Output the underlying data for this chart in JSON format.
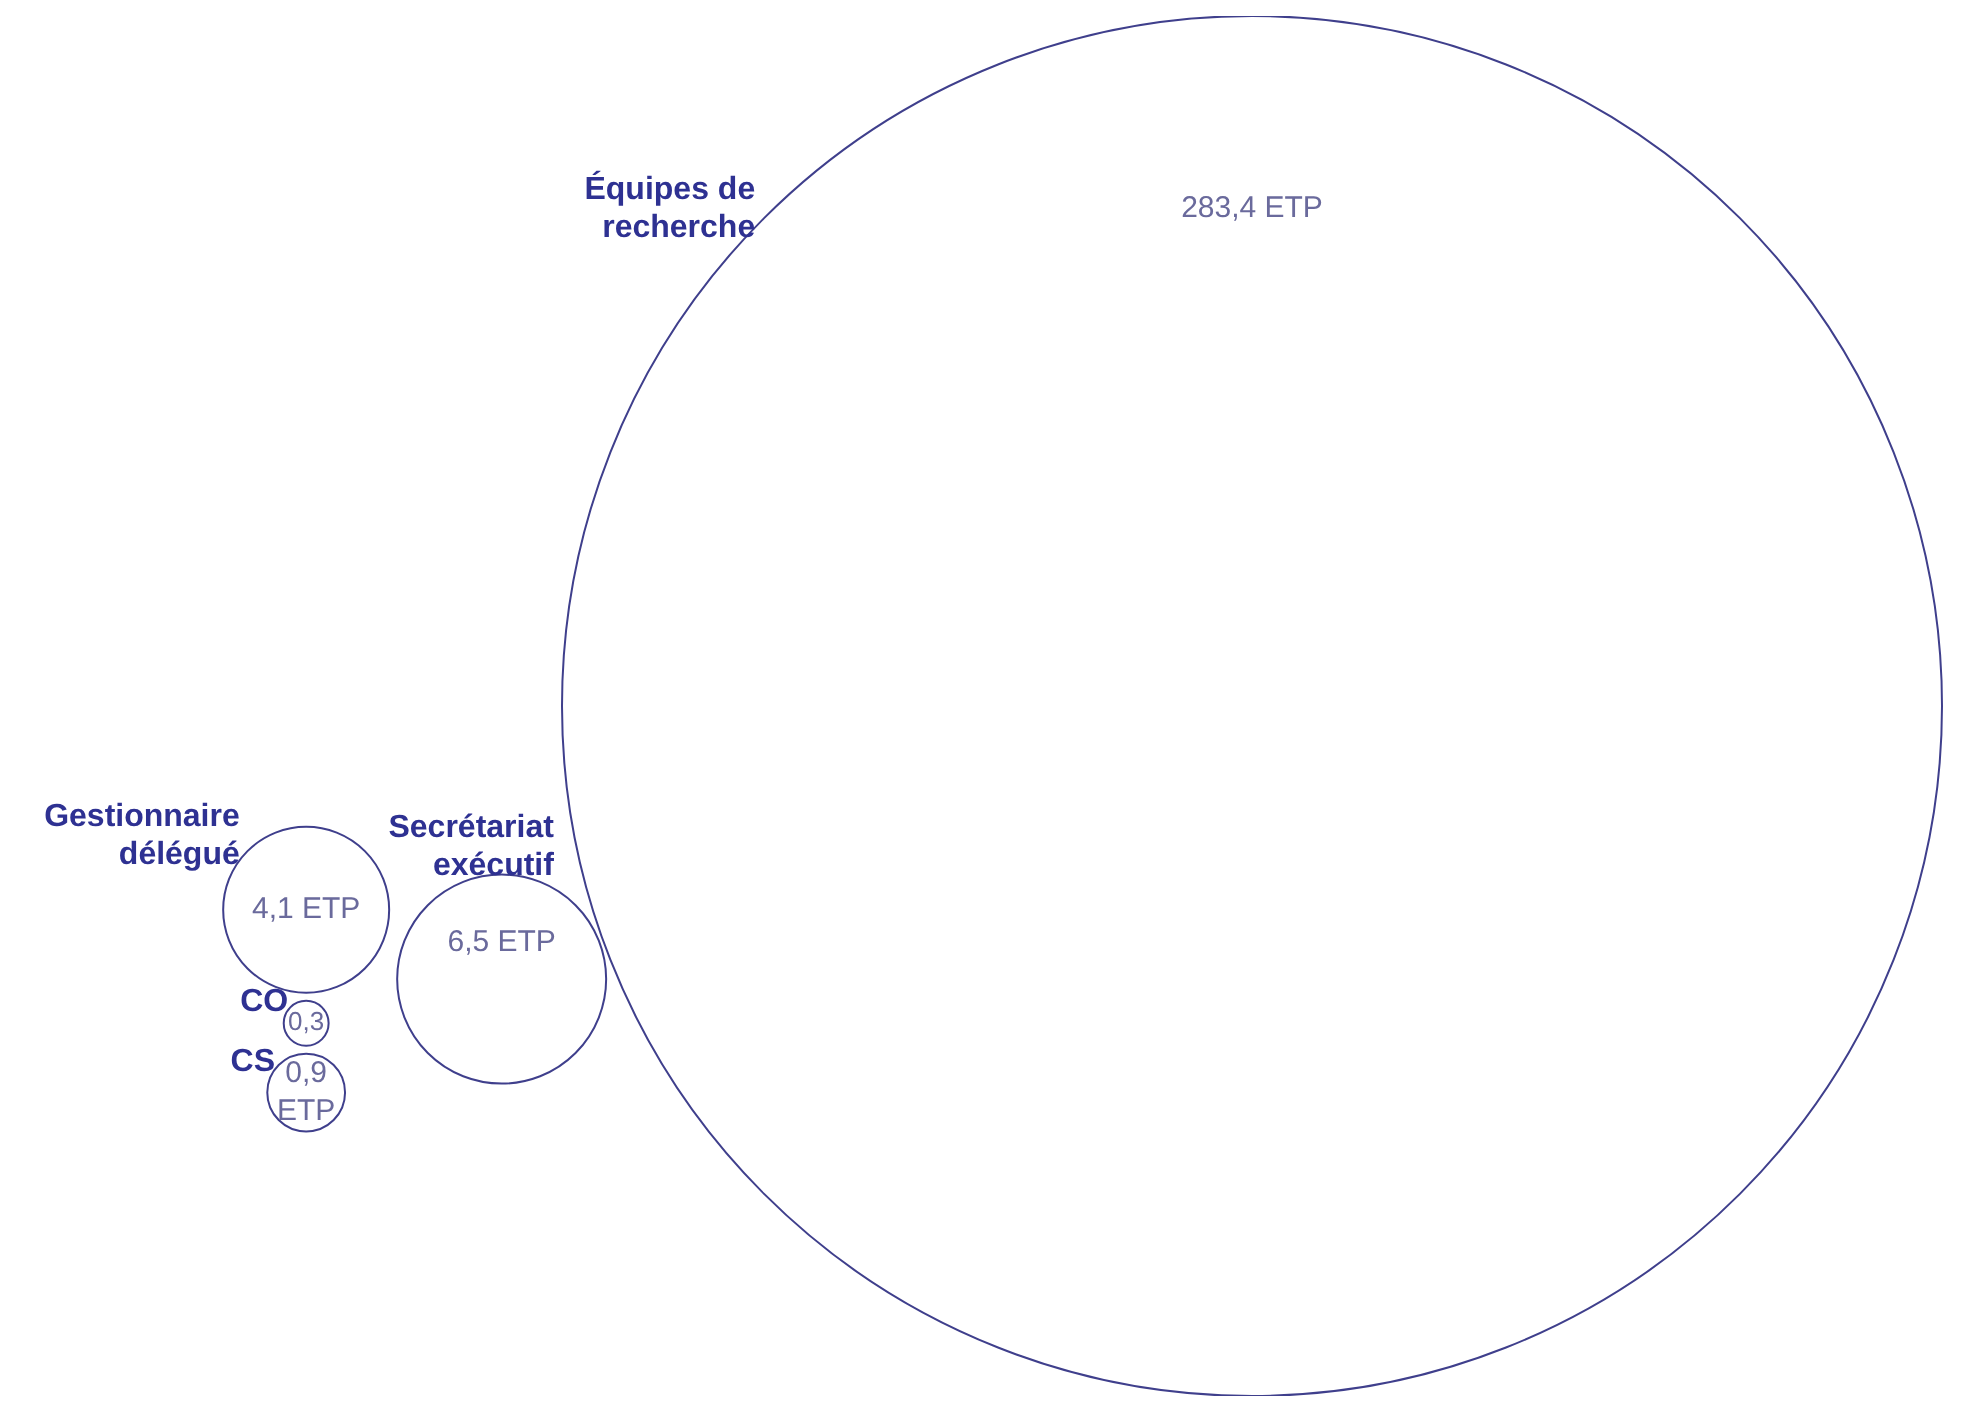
{
  "chart_data": {
    "type": "other",
    "categories": [
      "Équipes de recherche",
      "Secrétariat exécutif",
      "Gestionnaire délégué",
      "CO",
      "CS"
    ],
    "values": [
      283.4,
      6.5,
      4.1,
      0.3,
      0.9
    ],
    "value_labels": [
      "283,4 ETP",
      "6,5 ETP",
      "4,1 ETP",
      "0,3",
      "0,9 ETP"
    ],
    "color": "#3f3f8c"
  }
}
